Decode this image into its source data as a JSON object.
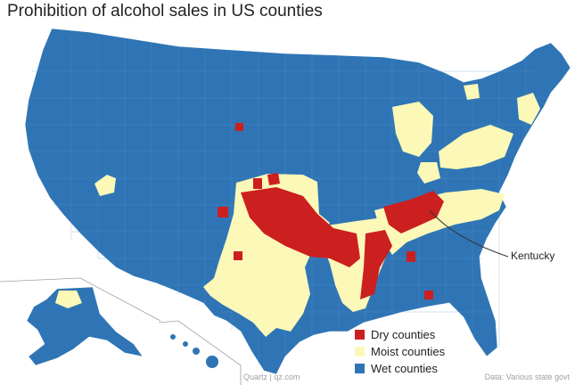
{
  "title": "Prohibition of alcohol sales in US counties",
  "callout": "Kentucky",
  "legend": [
    {
      "label": "Dry counties",
      "color": "#cc1f1f"
    },
    {
      "label": "Moist counties",
      "color": "#fbf8b8"
    },
    {
      "label": "Wet counties",
      "color": "#2f75b5"
    }
  ],
  "credit": "Quartz | qz.com",
  "source": "Data: Various state govt"
}
